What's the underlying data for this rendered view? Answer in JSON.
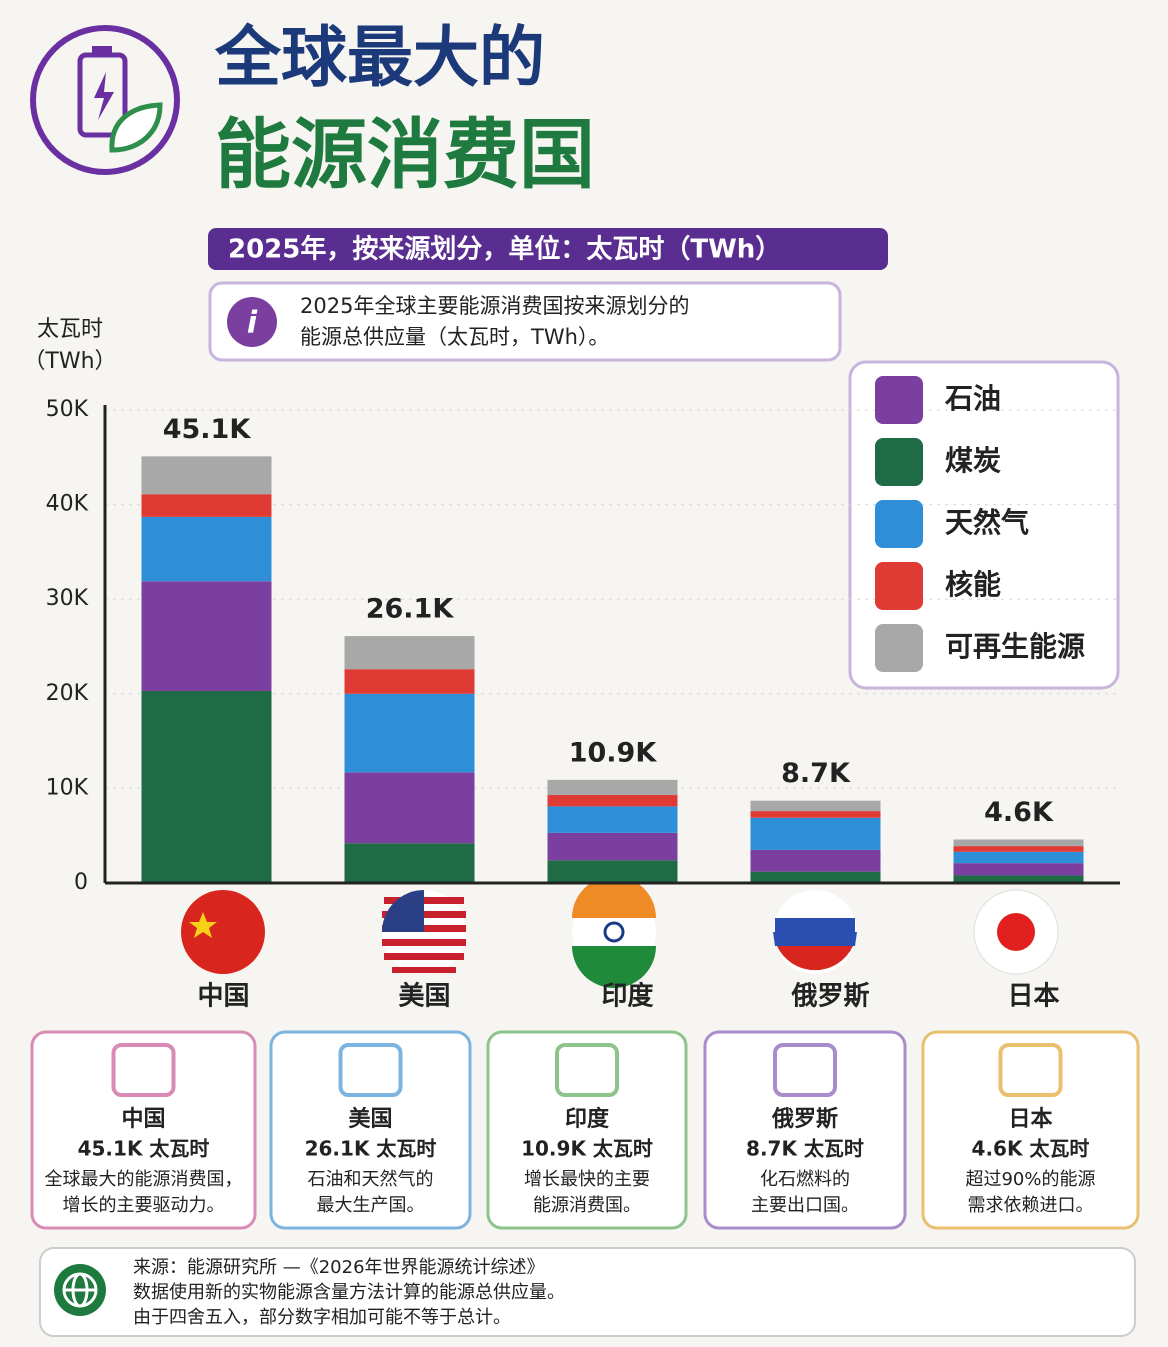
{
  "header": {
    "title_line1": "全球最大的",
    "title_line2": "能源消费国",
    "subtitle": "2025年，按来源划分，单位：太瓦时（TWh）"
  },
  "info": [
    "2025年全球主要能源消费国按来源划分的",
    "能源总供应量（太瓦时，TWh）。"
  ],
  "chart_data": {
    "type": "stacked_bar",
    "y_label": [
      "太瓦时",
      "（TWh）"
    ],
    "categories": [
      "中国",
      "美国",
      "印度",
      "俄罗斯",
      "日本"
    ],
    "series": [
      {
        "name": "煤炭",
        "color": "#1e6b45",
        "values": [
          20300,
          4200,
          2400,
          1200,
          800
        ]
      },
      {
        "name": "石油",
        "color": "#7b3fa0",
        "values": [
          11600,
          7500,
          2900,
          2300,
          1300
        ]
      },
      {
        "name": "天然气",
        "color": "#2e8fd8",
        "values": [
          6800,
          8300,
          2800,
          3400,
          1200
        ]
      },
      {
        "name": "核能",
        "color": "#e03a34",
        "values": [
          2400,
          2600,
          1200,
          700,
          600
        ]
      },
      {
        "name": "可再生能源",
        "color": "#a8a8a8",
        "values": [
          4000,
          3500,
          1600,
          1100,
          700
        ]
      }
    ],
    "legend_order": [
      "石油",
      "煤炭",
      "天然气",
      "核能",
      "可再生能源"
    ],
    "totals": [
      45100,
      26100,
      10900,
      8700,
      4600
    ],
    "value_labels": [
      "45.1K",
      "26.1K",
      "10.9K",
      "8.7K",
      "4.6K"
    ],
    "ylim": [
      0,
      50000
    ],
    "yticks": [
      0,
      {
        "value": 10000,
        "label": "10K"
      },
      {
        "value": 20000,
        "label": "20K"
      },
      {
        "value": 30000,
        "label": "30K"
      },
      {
        "value": 40000,
        "label": "40K"
      },
      {
        "value": 50000,
        "label": "50K"
      }
    ],
    "grid": true,
    "legend_position": "upper right"
  },
  "cards": [
    {
      "name": "中国",
      "value": "45.1K 太瓦时",
      "lines": [
        "全球最大的能源消费国，",
        "增长的主要驱动力。"
      ],
      "color": "#d98bb5"
    },
    {
      "name": "美国",
      "value": "26.1K 太瓦时",
      "lines": [
        "石油和天然气的",
        "最大生产国。"
      ],
      "color": "#7bb4e0"
    },
    {
      "name": "印度",
      "value": "10.9K 太瓦时",
      "lines": [
        "增长最快的主要",
        "能源消费国。"
      ],
      "color": "#8cc48c"
    },
    {
      "name": "俄罗斯",
      "value": "8.7K 太瓦时",
      "lines": [
        "化石燃料的",
        "主要出口国。"
      ],
      "color": "#a88ccc"
    },
    {
      "name": "日本",
      "value": "4.6K 太瓦时",
      "lines": [
        "超过90%的能源",
        "需求依赖进口。"
      ],
      "color": "#e8c070"
    }
  ],
  "source": [
    "来源：能源研究所 —《2026年世界能源统计综述》",
    "数据使用新的实物能源含量方法计算的能源总供应量。",
    "由于四舍五入，部分数字相加可能不等于总计。"
  ]
}
